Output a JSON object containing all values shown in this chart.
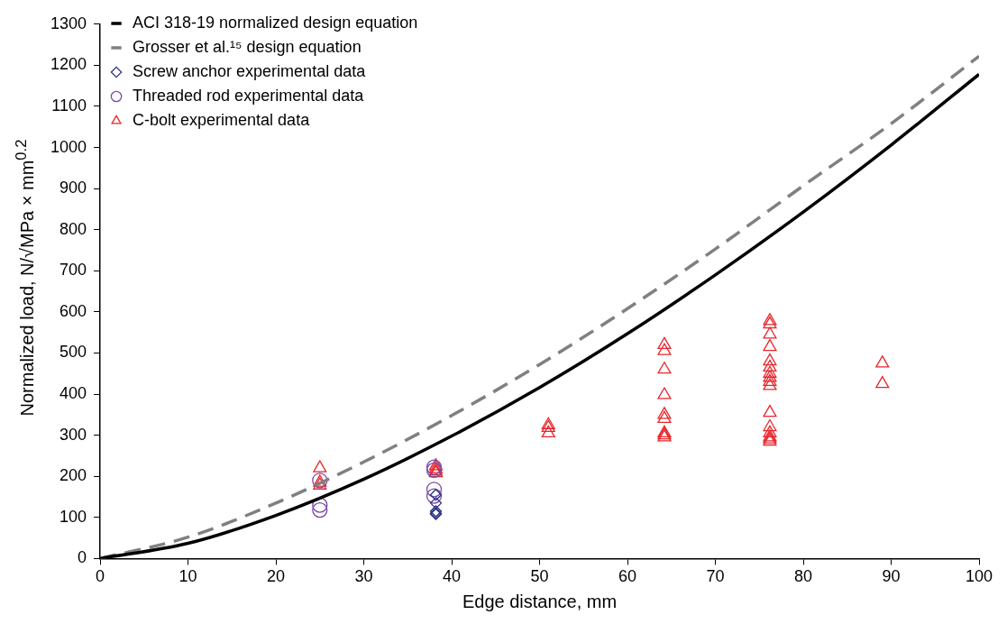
{
  "chart_data": {
    "type": "scatter",
    "xlabel": "Edge distance, mm",
    "ylabel": "Normalized load, N/√MPa × mm$^{0.2}$",
    "xlim": [
      0,
      100
    ],
    "xticks": [
      0,
      10,
      20,
      30,
      40,
      50,
      60,
      70,
      80,
      90,
      100
    ],
    "ylim": [
      0,
      1300
    ],
    "yticks": [
      0,
      100,
      200,
      300,
      400,
      500,
      600,
      700,
      800,
      900,
      1000,
      1100,
      1200,
      1300
    ],
    "grid": false,
    "legend": "top left",
    "series": [
      {
        "name": "ACI 318-19 normalized design equation",
        "type": "line",
        "line_style": "solid",
        "marker": "none",
        "color": "#000000",
        "x": [
          0,
          10,
          20,
          30,
          40,
          50,
          60,
          70,
          80,
          90,
          100
        ],
        "values": [
          0,
          37,
          105,
          193,
          298,
          416,
          547,
          690,
          843,
          1006,
          1178
        ]
      },
      {
        "name": "Grosser et al.¹⁵ design equation",
        "type": "line",
        "line_style": "dashed",
        "marker": "none",
        "color": "#808080",
        "x": [
          0,
          10,
          20,
          30,
          40,
          50,
          60,
          70,
          80,
          90,
          100
        ],
        "values": [
          0,
          52,
          135,
          235,
          348,
          472,
          608,
          753,
          907,
          1058,
          1222
        ]
      },
      {
        "name": "Screw anchor experimental data",
        "type": "scatter",
        "marker": "diamond",
        "color": "#2e3480",
        "x": [
          38.2,
          38.2,
          38.2,
          38.2,
          38.2
        ],
        "values": [
          155,
          135,
          115,
          110,
          108
        ]
      },
      {
        "name": "Threaded rod experimental data",
        "type": "scatter",
        "marker": "circle",
        "color": "#7a48a8",
        "x": [
          25,
          25,
          25,
          38,
          38,
          38,
          38
        ],
        "values": [
          190,
          130,
          118,
          222,
          215,
          168,
          152
        ]
      },
      {
        "name": "C-bolt experimental data",
        "type": "scatter",
        "marker": "triangle",
        "color": "#e8262c",
        "x": [
          25,
          25,
          25,
          38.2,
          38.2,
          38.2,
          38.2,
          51,
          51,
          51,
          64.2,
          64.2,
          64.2,
          64.2,
          64.2,
          64.2,
          64.2,
          64.2,
          64.2,
          76.2,
          76.2,
          76.2,
          76.2,
          76.2,
          76.2,
          76.2,
          76.2,
          76.2,
          76.2,
          76.2,
          76.2,
          76.2,
          76.2,
          76.2,
          76.2,
          89,
          89
        ],
        "values": [
          220,
          185,
          178,
          225,
          218,
          212,
          208,
          325,
          318,
          305,
          520,
          505,
          460,
          398,
          350,
          340,
          305,
          300,
          295,
          578,
          570,
          545,
          515,
          480,
          465,
          450,
          440,
          430,
          420,
          355,
          320,
          305,
          295,
          290,
          285,
          475,
          425
        ]
      }
    ]
  }
}
